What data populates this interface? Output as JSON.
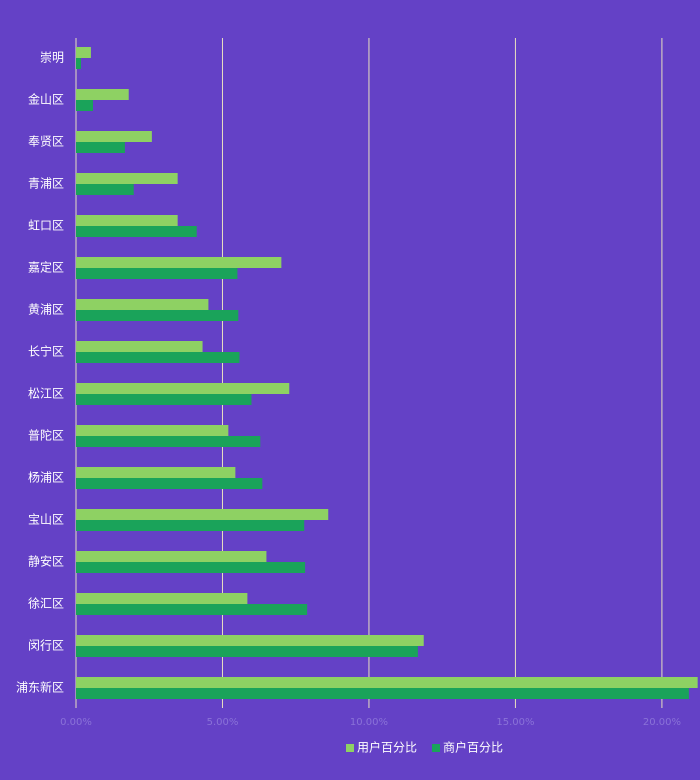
{
  "chart_data": {
    "type": "barh",
    "categories": [
      "崇明",
      "金山区",
      "奉贤区",
      "青浦区",
      "虹口区",
      "嘉定区",
      "黄浦区",
      "长宁区",
      "松江区",
      "普陀区",
      "杨浦区",
      "宝山区",
      "静安区",
      "徐汇区",
      "闵行区",
      "浦东新区"
    ],
    "series": [
      {
        "name": "用户百分比",
        "color": "#8ed163",
        "values": [
          0.51,
          1.8,
          2.59,
          3.47,
          3.47,
          7.01,
          4.52,
          4.32,
          7.28,
          5.2,
          5.44,
          8.61,
          6.5,
          5.85,
          11.87,
          21.22
        ]
      },
      {
        "name": "商户百分比",
        "color": "#1aa35a",
        "values": [
          0.17,
          0.58,
          1.67,
          1.97,
          4.12,
          5.51,
          5.54,
          5.58,
          5.99,
          6.29,
          6.36,
          7.79,
          7.82,
          7.89,
          11.67,
          20.92
        ]
      }
    ],
    "xlim": [
      0,
      21.3
    ],
    "xticks": [
      {
        "value": 0,
        "label": "0.00%"
      },
      {
        "value": 5,
        "label": "5.00%"
      },
      {
        "value": 10,
        "label": "10.00%"
      },
      {
        "value": 15,
        "label": "15.00%"
      },
      {
        "value": 20,
        "label": "20.00%"
      }
    ],
    "grid": true,
    "legend": "bottom"
  }
}
